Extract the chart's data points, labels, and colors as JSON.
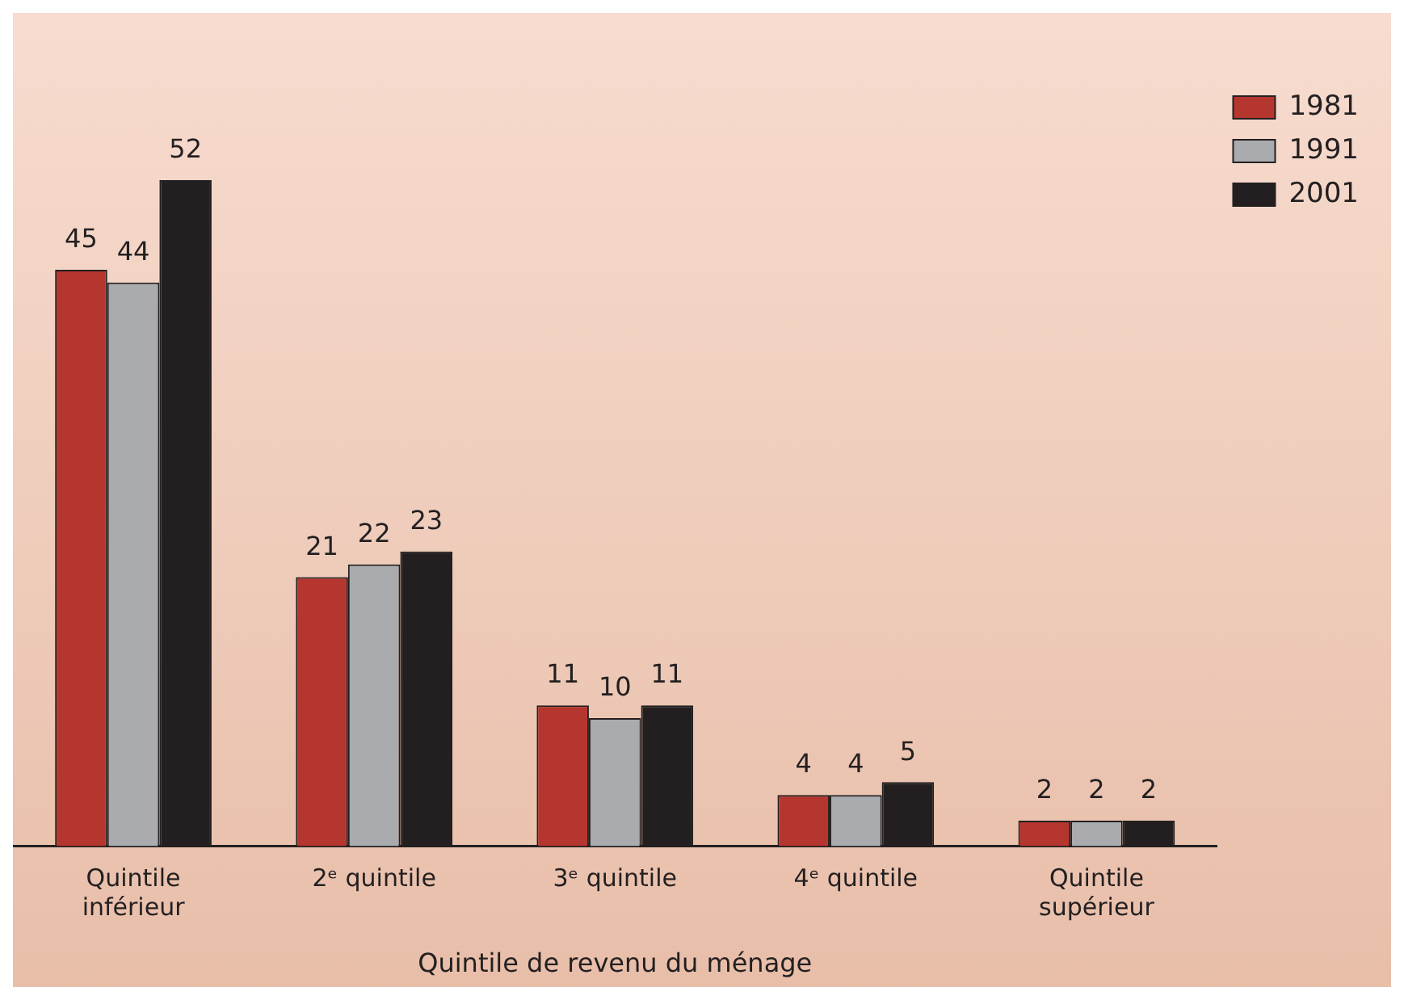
{
  "chart_data": {
    "type": "bar",
    "xlabel": "Quintile de revenu du ménage",
    "categories": [
      "Quintile\ninférieur",
      "2ᵉ quintile",
      "3ᵉ quintile",
      "4ᵉ quintile",
      "Quintile\nsupérieur"
    ],
    "series": [
      {
        "name": "1981",
        "color": "#b5362e",
        "values": [
          45,
          21,
          11,
          4,
          2
        ]
      },
      {
        "name": "1991",
        "color": "#a9abae",
        "values": [
          44,
          22,
          10,
          4,
          2
        ]
      },
      {
        "name": "2001",
        "color": "#231f20",
        "values": [
          52,
          23,
          11,
          5,
          2
        ]
      }
    ],
    "data_labels": true,
    "legend": "top right",
    "grid": false
  }
}
